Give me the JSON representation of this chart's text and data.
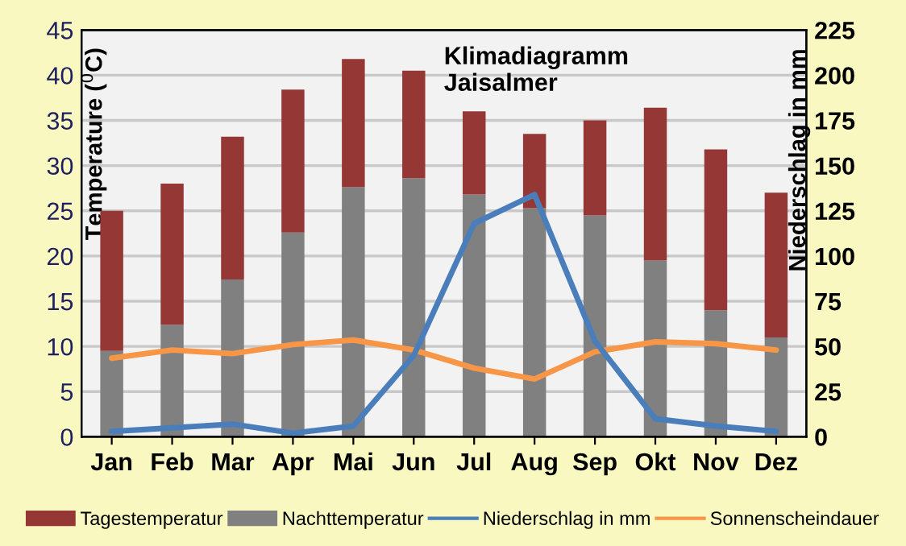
{
  "chart_data": {
    "type": "bar",
    "title": "Klimadiagramm\nJaisalmer",
    "categories": [
      "Jan",
      "Feb",
      "Mar",
      "Apr",
      "Mai",
      "Jun",
      "Jul",
      "Aug",
      "Sep",
      "Okt",
      "Nov",
      "Dez"
    ],
    "stacked": true,
    "series": [
      {
        "name": "Nachttemperatur",
        "color": "#808080",
        "values": [
          9.5,
          12.4,
          17.4,
          22.6,
          27.6,
          28.6,
          26.8,
          25.3,
          24.5,
          19.5,
          14,
          11
        ]
      },
      {
        "name": "Tagestemperatur",
        "color": "#953735",
        "values": [
          15.5,
          15.6,
          15.8,
          15.8,
          14.2,
          11.9,
          9.2,
          8.2,
          10.5,
          16.9,
          17.8,
          16
        ]
      },
      {
        "name": "Niederschlag in mm",
        "type": "line",
        "axis": "y2",
        "color": "#4a7ebb",
        "values": [
          3,
          5,
          7,
          2,
          6,
          45,
          118,
          134,
          53,
          10,
          6,
          3
        ]
      },
      {
        "name": "Sonnenscheindauer",
        "type": "line",
        "color": "#f79646",
        "values": [
          8.7,
          9.6,
          9.2,
          10.2,
          10.7,
          9.6,
          7.6,
          6.4,
          9.4,
          10.5,
          10.3,
          9.6
        ]
      }
    ],
    "ylabel": "Temperature ($^{0}$C)",
    "y2label": "Niederschlag in mm",
    "ylim": [
      0,
      45
    ],
    "yticks": [
      0,
      5,
      10,
      15,
      20,
      25,
      30,
      35,
      40,
      45
    ],
    "y2lim": [
      0,
      225
    ],
    "y2ticks": [
      0,
      25,
      50,
      75,
      100,
      125,
      150,
      175,
      200,
      225
    ],
    "grid": "y",
    "legend": "bottom"
  }
}
